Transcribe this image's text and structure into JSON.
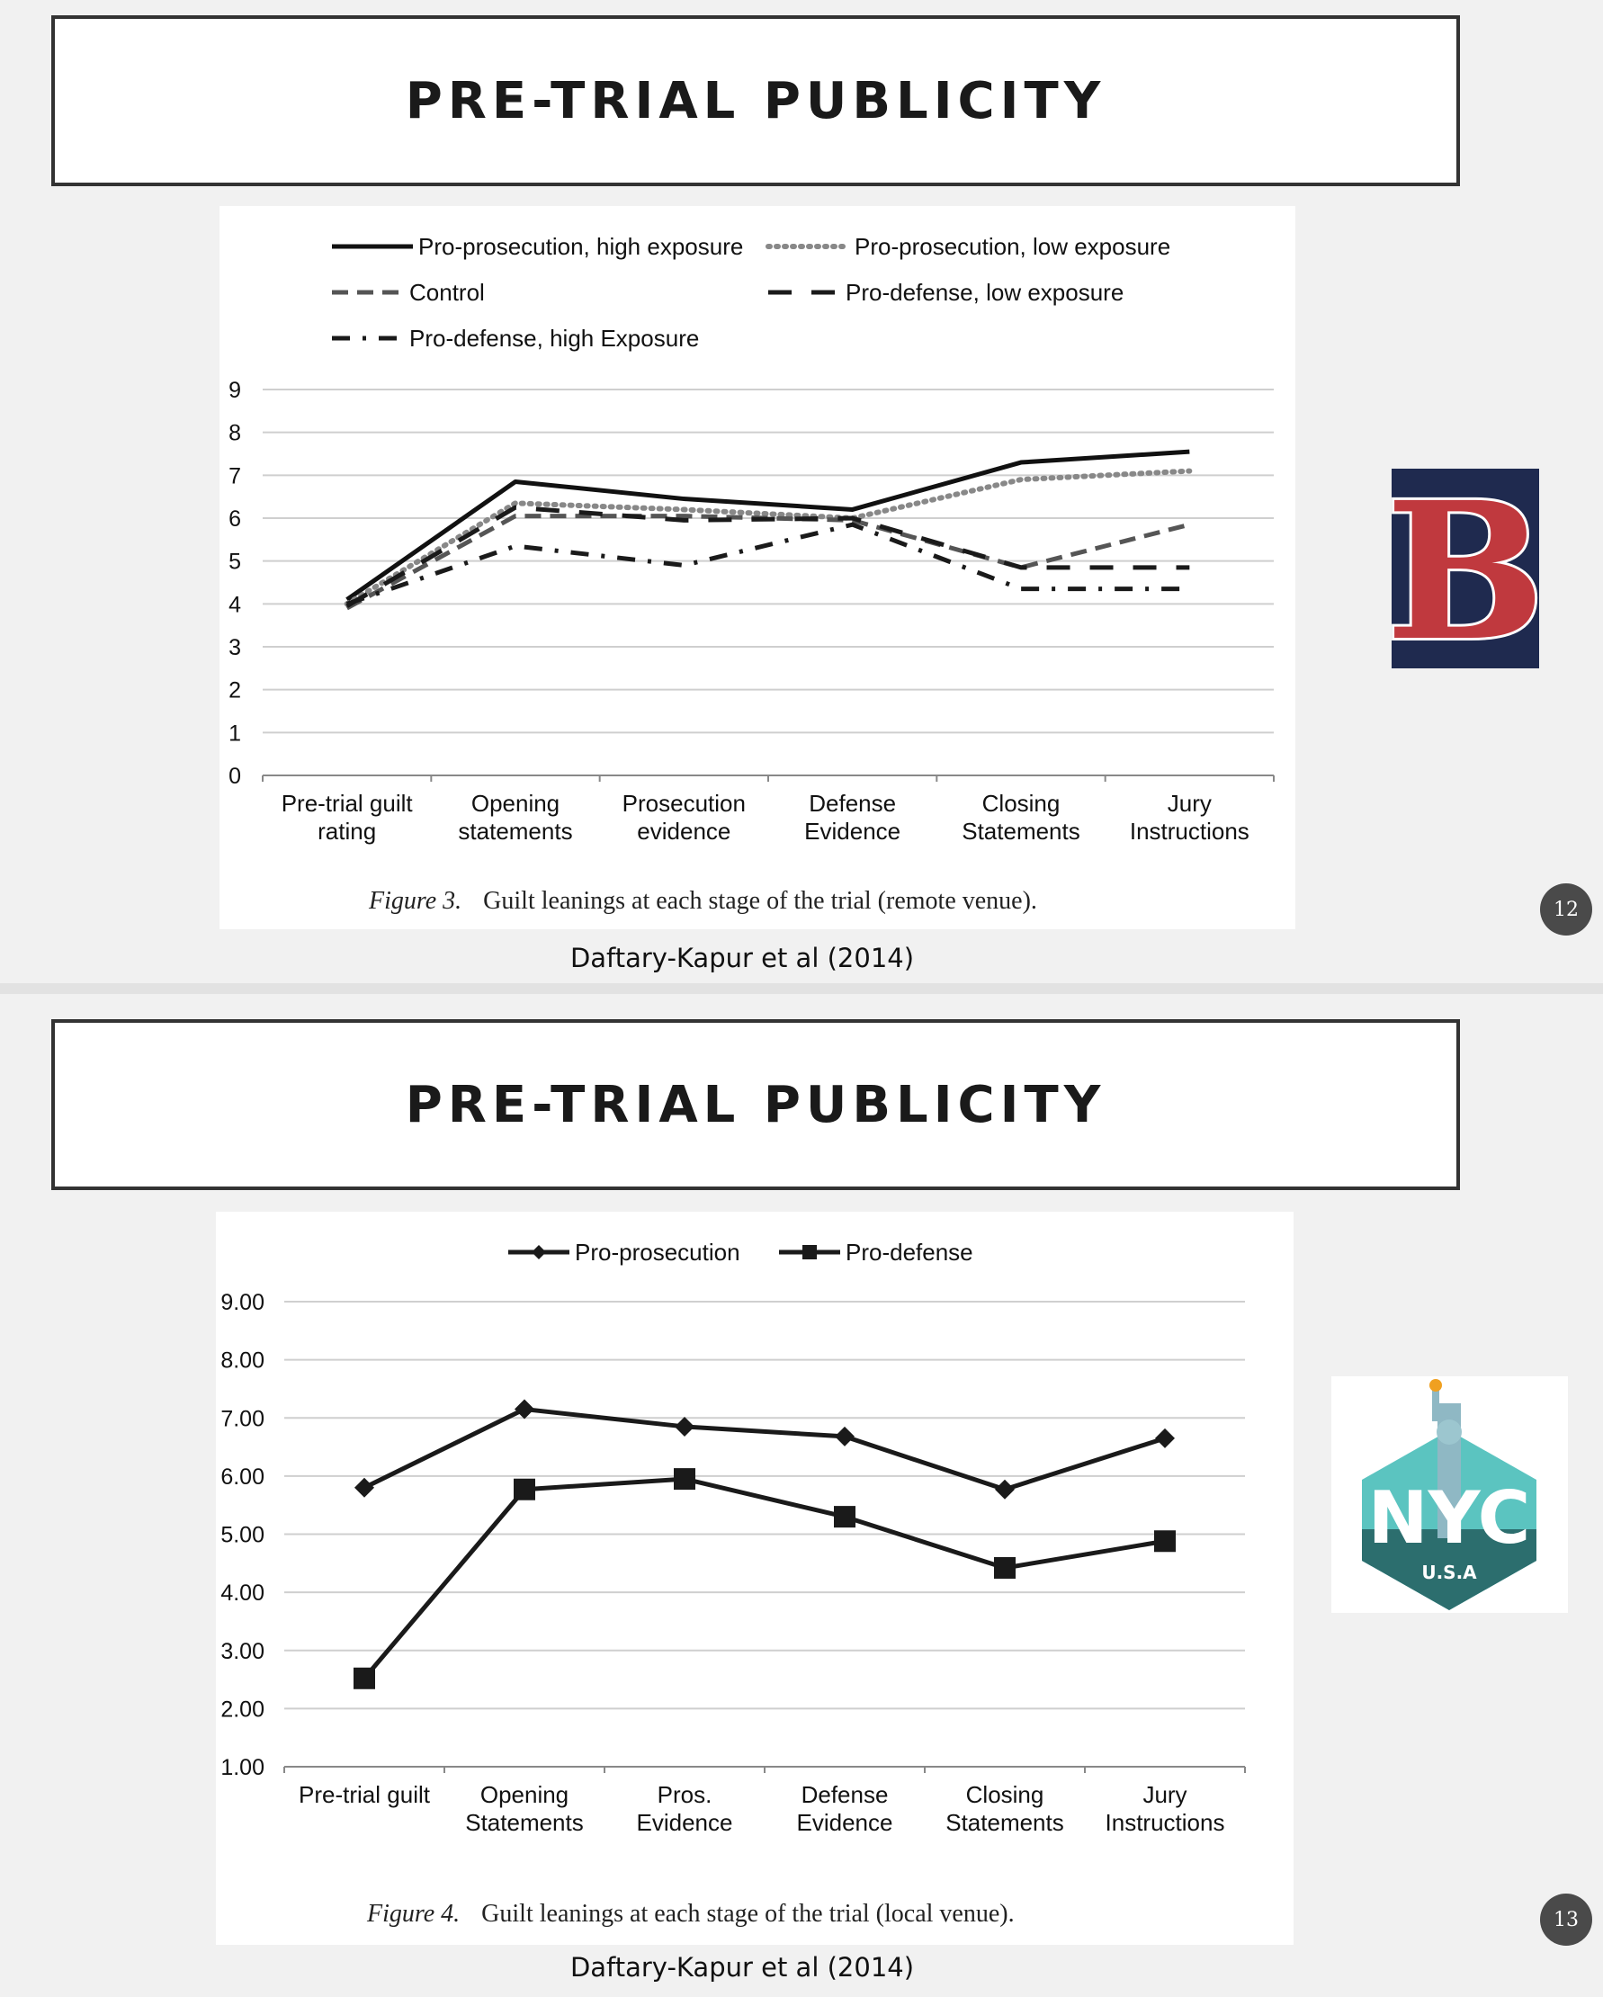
{
  "slide1": {
    "title": "PRE-TRIAL PUBLICITY",
    "citation": "Daftary-Kapur et al (2014)",
    "page_number": "12",
    "logo": "boston-red-sox-b-logo",
    "figure_label": "Figure 3.",
    "figure_caption": "Guilt leanings at each stage of the trial (remote venue)."
  },
  "slide2": {
    "title": "PRE-TRIAL PUBLICITY",
    "citation": "Daftary-Kapur et al (2014)",
    "page_number": "13",
    "logo": "nyc-statue-of-liberty-logo",
    "logo_text": "NYC",
    "logo_subtext": "U.S.A",
    "figure_label": "Figure 4.",
    "figure_caption": "Guilt leanings at each stage of the trial (local venue)."
  },
  "chart_data": [
    {
      "type": "line",
      "categories": [
        "Pre-trial guilt rating",
        "Opening statements",
        "Prosecution evidence",
        "Defense Evidence",
        "Closing Statements",
        "Jury Instructions"
      ],
      "category_lines": [
        [
          "Pre-trial guilt",
          "rating"
        ],
        [
          "Opening",
          "statements"
        ],
        [
          "Prosecution",
          "evidence"
        ],
        [
          "Defense",
          "Evidence"
        ],
        [
          "Closing",
          "Statements"
        ],
        [
          "Jury",
          "Instructions"
        ]
      ],
      "ylim": [
        0,
        9
      ],
      "yticks": [
        "0",
        "1",
        "2",
        "3",
        "4",
        "5",
        "6",
        "7",
        "8",
        "9"
      ],
      "grid": true,
      "legend_position": "top",
      "series": [
        {
          "name": "Pro-prosecution, high exposure",
          "style": "solid",
          "color": "#111111",
          "values": [
            4.1,
            6.85,
            6.45,
            6.2,
            7.3,
            7.55
          ]
        },
        {
          "name": "Pro-prosecution, low exposure",
          "style": "dotted",
          "color": "#888888",
          "values": [
            4.0,
            6.35,
            6.2,
            6.0,
            6.9,
            7.1
          ]
        },
        {
          "name": "Control",
          "style": "dashed",
          "color": "#555555",
          "values": [
            3.9,
            6.05,
            6.05,
            5.95,
            4.85,
            5.85
          ]
        },
        {
          "name": "Pro-defense, low exposure",
          "style": "longdash",
          "color": "#1a1a1a",
          "values": [
            3.95,
            6.25,
            5.95,
            6.0,
            4.85,
            4.85
          ]
        },
        {
          "name": "Pro-defense, high Exposure",
          "style": "dashdot",
          "color": "#1a1a1a",
          "values": [
            4.0,
            5.35,
            4.9,
            5.85,
            4.35,
            4.35
          ]
        }
      ]
    },
    {
      "type": "line",
      "categories": [
        "Pre-trial guilt",
        "Opening Statements",
        "Pros. Evidence",
        "Defense Evidence",
        "Closing Statements",
        "Jury Instructions"
      ],
      "category_lines": [
        [
          "Pre-trial guilt"
        ],
        [
          "Opening",
          "Statements"
        ],
        [
          "Pros.",
          "Evidence"
        ],
        [
          "Defense",
          "Evidence"
        ],
        [
          "Closing",
          "Statements"
        ],
        [
          "Jury",
          "Instructions"
        ]
      ],
      "ylim": [
        1,
        9
      ],
      "yticks": [
        "1.00",
        "2.00",
        "3.00",
        "4.00",
        "5.00",
        "6.00",
        "7.00",
        "8.00",
        "9.00"
      ],
      "grid": true,
      "legend_position": "top",
      "series": [
        {
          "name": "Pro-prosecution",
          "marker": "diamond",
          "color": "#1a1a1a",
          "values": [
            5.8,
            7.15,
            6.85,
            6.68,
            5.77,
            6.65
          ]
        },
        {
          "name": "Pro-defense",
          "marker": "square",
          "color": "#1a1a1a",
          "values": [
            2.52,
            5.77,
            5.95,
            5.3,
            4.42,
            4.88
          ]
        }
      ]
    }
  ]
}
